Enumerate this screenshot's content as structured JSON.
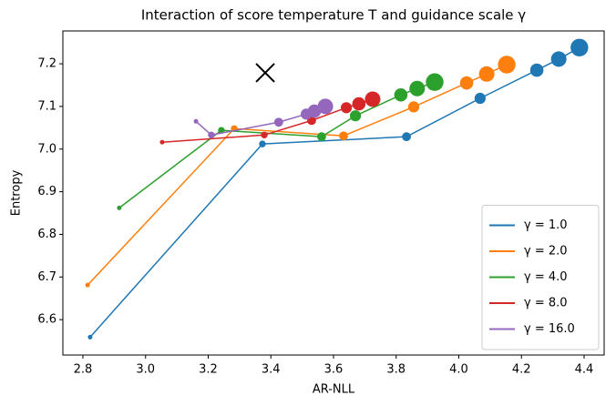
{
  "chart_data": {
    "type": "line",
    "title": "Interaction of score temperature T and guidance scale γ",
    "x_label": "AR-NLL",
    "y_label": "Entropy",
    "xlim": [
      2.736,
      4.464
    ],
    "ylim": [
      6.517,
      7.277
    ],
    "xticks": [
      2.8,
      {
        "value": 3.0,
        "label": "3.0"
      },
      3.2,
      3.4,
      3.6,
      3.8,
      {
        "value": 4.0,
        "label": "4.0"
      },
      4.2,
      4.4
    ],
    "yticks": [
      6.6,
      6.7,
      6.8,
      6.9,
      {
        "value": 7.0,
        "label": "7.0"
      },
      7.1,
      7.2
    ],
    "legend": "lower right",
    "reference_point": {
      "x": 3.382,
      "y": 7.179,
      "color": "#000000"
    },
    "series": [
      {
        "name": "γ = 1.0",
        "color": "#1f77b4",
        "x": [
          2.823,
          3.373,
          3.833,
          4.068,
          4.249,
          4.319,
          4.385
        ],
        "values": [
          6.559,
          7.012,
          7.029,
          7.119,
          7.185,
          7.211,
          7.238
        ]
      },
      {
        "name": "γ = 2.0",
        "color": "#ff7f0e",
        "x": [
          2.815,
          3.283,
          3.632,
          3.856,
          4.025,
          4.089,
          4.153
        ],
        "values": [
          6.681,
          7.048,
          7.031,
          7.099,
          7.155,
          7.176,
          7.198
        ]
      },
      {
        "name": "γ = 4.0",
        "color": "#2ca02c",
        "x": [
          2.916,
          3.242,
          3.562,
          3.67,
          3.815,
          3.867,
          3.923
        ],
        "values": [
          6.862,
          7.044,
          7.029,
          7.078,
          7.127,
          7.142,
          7.157
        ]
      },
      {
        "name": "γ = 8.0",
        "color": "#d62728",
        "x": [
          3.053,
          3.379,
          3.53,
          3.641,
          3.681,
          3.725
        ],
        "values": [
          7.016,
          7.033,
          7.067,
          7.097,
          7.106,
          7.117
        ]
      },
      {
        "name": "γ = 16.0",
        "color": "#9467bd",
        "x": [
          3.161,
          3.21,
          3.425,
          3.513,
          3.539,
          3.574
        ],
        "values": [
          7.065,
          7.033,
          7.063,
          7.082,
          7.089,
          7.1
        ]
      }
    ]
  }
}
